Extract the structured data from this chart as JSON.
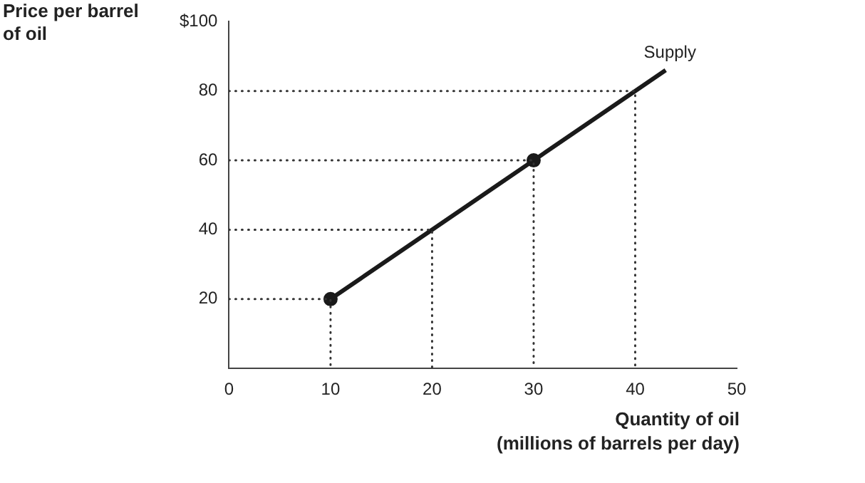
{
  "chart_data": {
    "type": "line",
    "xlabel": "Quantity of oil\n(millions of barrels per day)",
    "ylabel": "Price per barrel\nof oil",
    "xlim": [
      0,
      50
    ],
    "ylim": [
      0,
      100
    ],
    "xticks": [
      0,
      10,
      20,
      30,
      40,
      50
    ],
    "yticks": [
      20,
      40,
      60,
      80,
      {
        "value": 100,
        "label": "$100"
      }
    ],
    "grid": false,
    "legend": false,
    "series": [
      {
        "type": "line",
        "line_style": "dotted",
        "color": "#333333",
        "x": [
          0,
          10,
          10
        ],
        "values": [
          20,
          20,
          0
        ]
      },
      {
        "type": "line",
        "line_style": "dotted",
        "color": "#333333",
        "x": [
          0,
          20,
          20
        ],
        "values": [
          40,
          40,
          0
        ]
      },
      {
        "type": "line",
        "line_style": "dotted",
        "color": "#333333",
        "x": [
          0,
          30,
          30
        ],
        "values": [
          60,
          60,
          0
        ]
      },
      {
        "type": "line",
        "line_style": "dotted",
        "color": "#333333",
        "x": [
          0,
          40,
          40
        ],
        "values": [
          80,
          80,
          0
        ]
      },
      {
        "name": "Supply",
        "line_style": "solid",
        "marker": "none",
        "color": "#1a1a1a",
        "x": [
          10,
          20,
          30,
          40,
          43
        ],
        "values": [
          20,
          40,
          60,
          80,
          86
        ]
      },
      {
        "type": "scatter",
        "marker": "circle",
        "color": "#1a1a1a",
        "x": [
          10,
          30
        ],
        "values": [
          20,
          60
        ]
      }
    ]
  }
}
